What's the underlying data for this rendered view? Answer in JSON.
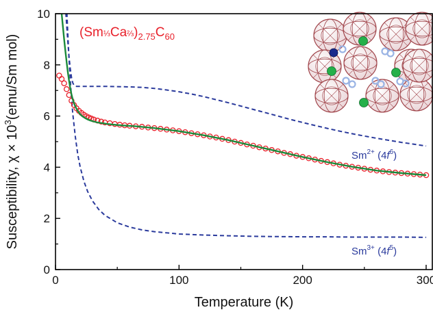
{
  "colors": {
    "data_points": "#e8202a",
    "fit_line": "#1a8a3a",
    "component_lines": "#2a3a9c",
    "fullerene": "#a0444a",
    "atom_green": "#25b04a",
    "atom_blue": "#1a2a8c",
    "atom_light_blue": "#9ab4e4"
  },
  "text": {
    "compound_main": "(Sm",
    "compound_frac1": "⅓",
    "compound_ca": "Ca",
    "compound_frac2": "⅔",
    "compound_close": ")",
    "compound_sub": "2.75",
    "compound_c": "C",
    "compound_c_sub": "60",
    "sm2_label": "Sm",
    "sm2_charge": "2+",
    "sm2_config_open": " (4",
    "sm2_config_f": "f",
    "sm2_config_exp": "6",
    "sm2_config_close": ")",
    "sm3_label": "Sm",
    "sm3_charge": "3+",
    "sm3_config_open": " (4",
    "sm3_config_f": "f",
    "sm3_config_exp": "5",
    "sm3_config_close": ")",
    "ylabel_main": "Susceptibility, χ × 10",
    "ylabel_exp": "3",
    "ylabel_unit": "(emu/Sm mol)",
    "xlabel": "Temperature (K)"
  },
  "chart_data": {
    "type": "scatter",
    "xlabel": "Temperature (K)",
    "ylabel": "Susceptibility, χ × 10³(emu/Sm mol)",
    "xlim": [
      0,
      305
    ],
    "ylim": [
      0,
      10
    ],
    "x_ticks": [
      0,
      100,
      200,
      300
    ],
    "y_ticks": [
      0,
      2,
      4,
      6,
      8,
      10
    ],
    "grid": false,
    "series": [
      {
        "name": "(Sm⅓Ca⅔)2.75C60",
        "style": "open-circles",
        "x": [
          3,
          5,
          7,
          9,
          11,
          13,
          15,
          17,
          19,
          21,
          23,
          25,
          27,
          29,
          31,
          34,
          37,
          40,
          44,
          48,
          52,
          56,
          60,
          65,
          70,
          75,
          80,
          85,
          90,
          95,
          100,
          105,
          110,
          115,
          120,
          125,
          130,
          135,
          140,
          145,
          150,
          155,
          160,
          165,
          170,
          175,
          180,
          185,
          190,
          195,
          200,
          205,
          210,
          215,
          220,
          225,
          230,
          235,
          240,
          245,
          250,
          255,
          260,
          265,
          270,
          275,
          280,
          285,
          290,
          295,
          300
        ],
        "values": [
          7.58,
          7.45,
          7.28,
          7.05,
          6.82,
          6.6,
          6.43,
          6.3,
          6.2,
          6.12,
          6.05,
          5.99,
          5.94,
          5.9,
          5.86,
          5.82,
          5.78,
          5.75,
          5.72,
          5.69,
          5.66,
          5.64,
          5.62,
          5.6,
          5.58,
          5.55,
          5.53,
          5.5,
          5.47,
          5.44,
          5.41,
          5.37,
          5.33,
          5.29,
          5.25,
          5.2,
          5.16,
          5.11,
          5.06,
          5.0,
          4.95,
          4.89,
          4.84,
          4.78,
          4.73,
          4.67,
          4.62,
          4.56,
          4.51,
          4.45,
          4.4,
          4.35,
          4.3,
          4.25,
          4.2,
          4.15,
          4.1,
          4.06,
          4.02,
          3.98,
          3.94,
          3.9,
          3.87,
          3.84,
          3.81,
          3.79,
          3.77,
          3.75,
          3.73,
          3.71,
          3.69
        ]
      },
      {
        "name": "fit",
        "style": "solid-line",
        "x": [
          4,
          5,
          6,
          7,
          8,
          9,
          10,
          11,
          12,
          13,
          14,
          15,
          16,
          17,
          18,
          19,
          20,
          21,
          22,
          24,
          26,
          28,
          30,
          34,
          38,
          42,
          48,
          55,
          65,
          80,
          100,
          120,
          140,
          160,
          180,
          200,
          220,
          240,
          260,
          280,
          300
        ],
        "values": [
          10.2,
          10.0,
          9.5,
          9.0,
          8.55,
          8.12,
          7.72,
          7.38,
          7.08,
          6.84,
          6.65,
          6.5,
          6.38,
          6.28,
          6.2,
          6.13,
          6.07,
          6.02,
          5.98,
          5.92,
          5.87,
          5.83,
          5.8,
          5.75,
          5.72,
          5.69,
          5.66,
          5.63,
          5.6,
          5.53,
          5.41,
          5.25,
          5.06,
          4.84,
          4.62,
          4.4,
          4.2,
          4.02,
          3.87,
          3.77,
          3.69
        ]
      },
      {
        "name": "Sm²⁺ (4f⁶)",
        "style": "dashed-line",
        "x": [
          8,
          9,
          10,
          11,
          12,
          13,
          14,
          15,
          16,
          17,
          18,
          20,
          25,
          30,
          40,
          50,
          60,
          70,
          80,
          90,
          100,
          110,
          120,
          130,
          140,
          150,
          160,
          170,
          180,
          190,
          200,
          210,
          220,
          230,
          240,
          250,
          260,
          270,
          280,
          290,
          300
        ],
        "values": [
          10.3,
          9.6,
          8.9,
          8.3,
          7.85,
          7.5,
          7.3,
          7.2,
          7.17,
          7.16,
          7.16,
          7.16,
          7.16,
          7.16,
          7.16,
          7.15,
          7.14,
          7.12,
          7.08,
          7.02,
          6.95,
          6.86,
          6.76,
          6.64,
          6.52,
          6.39,
          6.26,
          6.13,
          6.0,
          5.87,
          5.75,
          5.63,
          5.52,
          5.41,
          5.31,
          5.22,
          5.13,
          5.05,
          4.97,
          4.9,
          4.83
        ]
      },
      {
        "name": "Sm³⁺ (4f⁵)",
        "style": "dashed-line",
        "x": [
          9,
          10,
          11,
          12,
          13,
          14,
          16,
          18,
          20,
          23,
          26,
          30,
          35,
          40,
          50,
          60,
          70,
          80,
          100,
          120,
          140,
          160,
          180,
          200,
          220,
          240,
          260,
          280,
          300
        ],
        "values": [
          10.3,
          9.2,
          8.2,
          7.4,
          6.7,
          6.1,
          5.2,
          4.5,
          4.0,
          3.45,
          3.05,
          2.68,
          2.35,
          2.12,
          1.83,
          1.66,
          1.55,
          1.48,
          1.39,
          1.35,
          1.32,
          1.3,
          1.29,
          1.28,
          1.28,
          1.27,
          1.27,
          1.27,
          1.26
        ]
      }
    ]
  }
}
